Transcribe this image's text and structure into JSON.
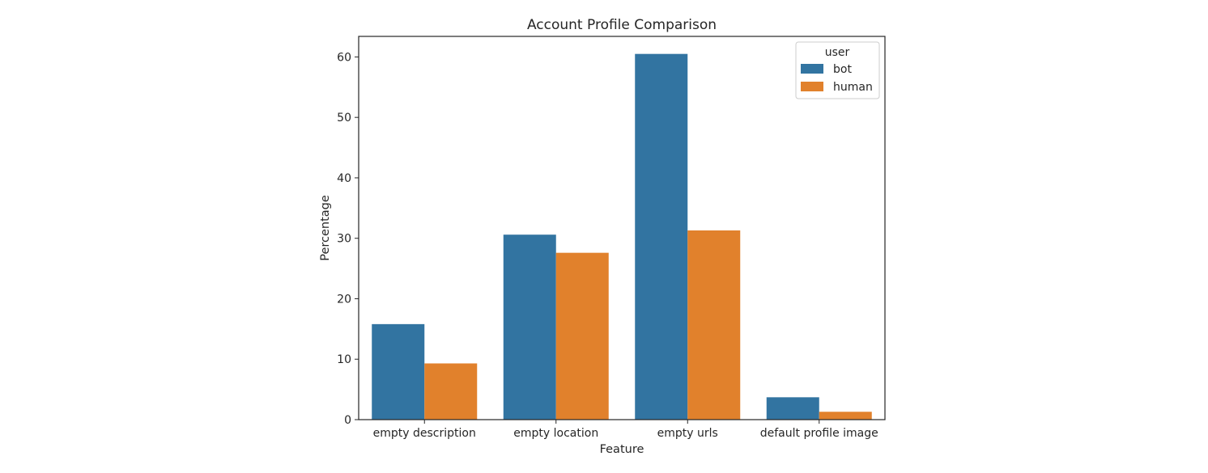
{
  "chart_data": {
    "type": "bar",
    "title": "Account Profile Comparison",
    "xlabel": "Feature",
    "ylabel": "Percentage",
    "categories": [
      "empty description",
      "empty location",
      "empty urls",
      "default profile image"
    ],
    "series": [
      {
        "name": "bot",
        "color": "#3274a1",
        "values": [
          15.8,
          30.6,
          60.5,
          3.7
        ]
      },
      {
        "name": "human",
        "color": "#e1812c",
        "values": [
          9.3,
          27.6,
          31.3,
          1.3
        ]
      }
    ],
    "ylim": [
      0,
      63.4
    ],
    "yticks": [
      0,
      10,
      20,
      30,
      40,
      50,
      60
    ],
    "grid": false,
    "legend": {
      "title": "user",
      "placement": "top-right"
    }
  }
}
